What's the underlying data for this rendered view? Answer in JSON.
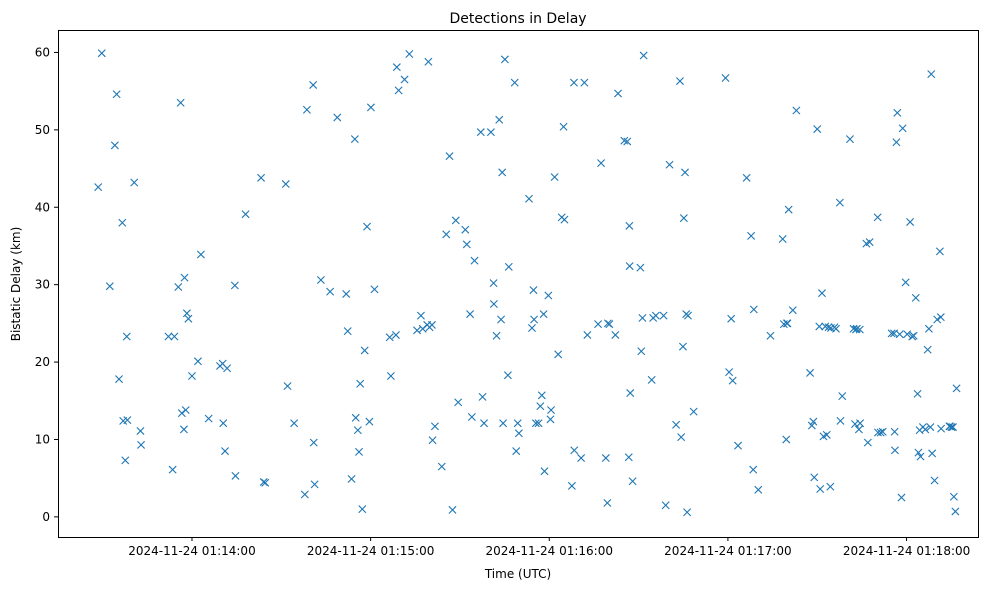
{
  "chart_data": {
    "type": "scatter",
    "title": "Detections in Delay",
    "xlabel": "Time (UTC)",
    "ylabel": "Bistatic Delay (km)",
    "x_unit": "seconds",
    "x_ticks": [
      {
        "value": 60,
        "label": "2024-11-24 01:14:00"
      },
      {
        "value": 120,
        "label": "2024-11-24 01:15:00"
      },
      {
        "value": 180,
        "label": "2024-11-24 01:16:00"
      },
      {
        "value": 240,
        "label": "2024-11-24 01:17:00"
      },
      {
        "value": 300,
        "label": "2024-11-24 01:18:00"
      }
    ],
    "y_ticks": [
      0,
      10,
      20,
      30,
      40,
      50,
      60
    ],
    "xlim": [
      15.0,
      324.0
    ],
    "ylim": [
      -2.6,
      62.9
    ],
    "grid": false,
    "legend": false,
    "marker": "x",
    "color": "#1f77b4",
    "series": [
      {
        "points": [
          [
            28.5,
            42.6
          ],
          [
            29.7,
            59.9
          ],
          [
            32.4,
            29.8
          ],
          [
            34.1,
            48.0
          ],
          [
            34.7,
            54.6
          ],
          [
            35.5,
            17.8
          ],
          [
            36.6,
            38.0
          ],
          [
            36.9,
            12.4
          ],
          [
            37.6,
            7.3
          ],
          [
            38.1,
            23.3
          ],
          [
            38.3,
            12.5
          ],
          [
            40.6,
            43.2
          ],
          [
            42.7,
            11.1
          ],
          [
            42.9,
            9.3
          ],
          [
            52.1,
            23.3
          ],
          [
            53.5,
            6.1
          ],
          [
            54.1,
            23.3
          ],
          [
            55.4,
            29.7
          ],
          [
            56.2,
            53.5
          ],
          [
            56.6,
            13.4
          ],
          [
            57.3,
            11.3
          ],
          [
            57.5,
            30.9
          ],
          [
            57.9,
            13.8
          ],
          [
            58.3,
            26.3
          ],
          [
            58.8,
            25.6
          ],
          [
            60.0,
            18.2
          ],
          [
            62.0,
            20.1
          ],
          [
            63.0,
            33.9
          ],
          [
            65.6,
            12.7
          ],
          [
            69.4,
            19.5
          ],
          [
            70.3,
            19.8
          ],
          [
            70.5,
            12.1
          ],
          [
            71.1,
            8.5
          ],
          [
            71.8,
            19.2
          ],
          [
            74.4,
            29.9
          ],
          [
            74.6,
            5.3
          ],
          [
            78.0,
            39.1
          ],
          [
            83.2,
            43.8
          ],
          [
            84.1,
            4.5
          ],
          [
            84.6,
            4.4
          ],
          [
            91.5,
            43.0
          ],
          [
            92.1,
            16.9
          ],
          [
            94.3,
            12.1
          ],
          [
            97.9,
            2.9
          ],
          [
            98.6,
            52.6
          ],
          [
            100.7,
            55.8
          ],
          [
            100.9,
            9.6
          ],
          [
            101.2,
            4.2
          ],
          [
            103.3,
            30.6
          ],
          [
            106.4,
            29.1
          ],
          [
            108.8,
            51.6
          ],
          [
            111.8,
            28.8
          ],
          [
            112.3,
            24.0
          ],
          [
            113.6,
            4.9
          ],
          [
            114.7,
            48.8
          ],
          [
            115.0,
            12.8
          ],
          [
            115.7,
            11.2
          ],
          [
            116.1,
            8.4
          ],
          [
            116.5,
            17.2
          ],
          [
            117.2,
            1.0
          ],
          [
            118.0,
            21.5
          ],
          [
            118.8,
            37.5
          ],
          [
            119.6,
            12.3
          ],
          [
            120.1,
            52.9
          ],
          [
            121.3,
            29.4
          ],
          [
            126.4,
            23.2
          ],
          [
            126.8,
            18.2
          ],
          [
            128.5,
            23.5
          ],
          [
            128.8,
            58.1
          ],
          [
            129.4,
            55.1
          ],
          [
            131.4,
            56.5
          ],
          [
            133.0,
            59.8
          ],
          [
            135.6,
            24.1
          ],
          [
            136.9,
            26.0
          ],
          [
            137.5,
            24.3
          ],
          [
            139.0,
            24.8
          ],
          [
            139.4,
            58.8
          ],
          [
            139.8,
            24.5
          ],
          [
            140.6,
            24.8
          ],
          [
            140.8,
            9.9
          ],
          [
            141.6,
            11.7
          ],
          [
            143.9,
            6.5
          ],
          [
            145.4,
            36.5
          ],
          [
            146.5,
            46.6
          ],
          [
            147.5,
            0.9
          ],
          [
            148.6,
            38.3
          ],
          [
            149.4,
            14.8
          ],
          [
            151.8,
            37.1
          ],
          [
            152.3,
            35.2
          ],
          [
            153.4,
            26.2
          ],
          [
            154.0,
            12.9
          ],
          [
            154.9,
            33.1
          ],
          [
            157.0,
            49.7
          ],
          [
            157.6,
            15.5
          ],
          [
            158.1,
            12.1
          ],
          [
            160.4,
            49.7
          ],
          [
            161.3,
            30.2
          ],
          [
            161.4,
            27.5
          ],
          [
            162.3,
            23.4
          ],
          [
            163.2,
            51.3
          ],
          [
            163.8,
            25.5
          ],
          [
            164.2,
            44.5
          ],
          [
            164.5,
            12.1
          ],
          [
            165.1,
            59.1
          ],
          [
            166.1,
            18.3
          ],
          [
            166.4,
            32.3
          ],
          [
            168.4,
            56.1
          ],
          [
            168.9,
            8.5
          ],
          [
            169.4,
            12.1
          ],
          [
            169.8,
            10.8
          ],
          [
            173.2,
            41.1
          ],
          [
            174.2,
            24.4
          ],
          [
            174.7,
            29.3
          ],
          [
            174.9,
            25.5
          ],
          [
            175.5,
            12.1
          ],
          [
            176.4,
            12.1
          ],
          [
            177.0,
            14.3
          ],
          [
            177.5,
            15.7
          ],
          [
            178.1,
            26.2
          ],
          [
            178.4,
            5.9
          ],
          [
            179.7,
            28.6
          ],
          [
            180.4,
            12.6
          ],
          [
            180.6,
            13.8
          ],
          [
            181.8,
            43.9
          ],
          [
            183.0,
            21.0
          ],
          [
            184.2,
            38.7
          ],
          [
            184.8,
            50.4
          ],
          [
            185.1,
            38.4
          ],
          [
            187.6,
            4.0
          ],
          [
            188.3,
            56.1
          ],
          [
            188.4,
            8.6
          ],
          [
            190.7,
            7.6
          ],
          [
            191.8,
            56.1
          ],
          [
            192.8,
            23.5
          ],
          [
            196.4,
            24.9
          ],
          [
            197.4,
            45.7
          ],
          [
            199.0,
            7.6
          ],
          [
            199.5,
            1.8
          ],
          [
            199.7,
            25.0
          ],
          [
            200.2,
            24.9
          ],
          [
            202.2,
            23.5
          ],
          [
            203.1,
            54.7
          ],
          [
            205.2,
            48.6
          ],
          [
            206.2,
            48.5
          ],
          [
            206.7,
            7.7
          ],
          [
            206.9,
            37.6
          ],
          [
            207.0,
            32.4
          ],
          [
            207.2,
            16.0
          ],
          [
            208.0,
            4.6
          ],
          [
            210.6,
            32.2
          ],
          [
            210.9,
            21.4
          ],
          [
            211.3,
            25.7
          ],
          [
            211.7,
            59.6
          ],
          [
            214.4,
            17.7
          ],
          [
            214.9,
            25.7
          ],
          [
            215.8,
            26.0
          ],
          [
            218.4,
            26.0
          ],
          [
            219.1,
            1.5
          ],
          [
            220.4,
            45.5
          ],
          [
            222.6,
            11.9
          ],
          [
            223.9,
            56.3
          ],
          [
            224.3,
            10.3
          ],
          [
            224.9,
            22.0
          ],
          [
            225.2,
            38.6
          ],
          [
            225.6,
            44.5
          ],
          [
            226.0,
            26.2
          ],
          [
            226.3,
            0.6
          ],
          [
            226.6,
            26.0
          ],
          [
            228.5,
            13.6
          ],
          [
            239.2,
            56.7
          ],
          [
            240.4,
            18.7
          ],
          [
            241.1,
            25.6
          ],
          [
            241.6,
            17.6
          ],
          [
            243.4,
            9.2
          ],
          [
            246.3,
            43.8
          ],
          [
            247.8,
            36.3
          ],
          [
            248.5,
            6.1
          ],
          [
            248.7,
            26.8
          ],
          [
            250.2,
            3.5
          ],
          [
            254.3,
            23.4
          ],
          [
            258.4,
            35.9
          ],
          [
            258.8,
            24.9
          ],
          [
            259.6,
            10.0
          ],
          [
            259.8,
            25.0
          ],
          [
            260.0,
            25.0
          ],
          [
            260.4,
            39.7
          ],
          [
            261.8,
            26.7
          ],
          [
            263.0,
            52.5
          ],
          [
            267.6,
            18.6
          ],
          [
            268.2,
            11.8
          ],
          [
            268.7,
            12.3
          ],
          [
            269.0,
            5.1
          ],
          [
            270.0,
            50.1
          ],
          [
            270.7,
            24.6
          ],
          [
            271.0,
            3.6
          ],
          [
            271.6,
            28.9
          ],
          [
            272.1,
            10.4
          ],
          [
            272.7,
            24.6
          ],
          [
            273.2,
            10.6
          ],
          [
            273.8,
            24.5
          ],
          [
            274.4,
            3.9
          ],
          [
            274.6,
            24.4
          ],
          [
            275.8,
            24.5
          ],
          [
            276.3,
            24.3
          ],
          [
            277.6,
            40.6
          ],
          [
            277.8,
            12.4
          ],
          [
            278.4,
            15.6
          ],
          [
            281.0,
            48.8
          ],
          [
            282.2,
            24.3
          ],
          [
            282.7,
            12.0
          ],
          [
            283.0,
            24.2
          ],
          [
            283.3,
            24.3
          ],
          [
            284.0,
            11.3
          ],
          [
            284.3,
            24.2
          ],
          [
            284.4,
            12.1
          ],
          [
            286.5,
            35.3
          ],
          [
            287.0,
            9.6
          ],
          [
            287.6,
            35.5
          ],
          [
            290.3,
            38.7
          ],
          [
            290.4,
            10.9
          ],
          [
            291.3,
            10.9
          ],
          [
            292.0,
            11.0
          ],
          [
            295.0,
            23.7
          ],
          [
            295.8,
            23.7
          ],
          [
            296.0,
            11.0
          ],
          [
            296.1,
            8.6
          ],
          [
            296.6,
            48.4
          ],
          [
            296.9,
            52.2
          ],
          [
            297.7,
            23.6
          ],
          [
            298.3,
            2.5
          ],
          [
            298.7,
            50.2
          ],
          [
            299.7,
            30.3
          ],
          [
            300.2,
            23.6
          ],
          [
            301.2,
            38.1
          ],
          [
            301.9,
            23.3
          ],
          [
            302.4,
            23.4
          ],
          [
            303.1,
            28.3
          ],
          [
            303.7,
            15.9
          ],
          [
            304.0,
            8.3
          ],
          [
            304.4,
            11.2
          ],
          [
            304.7,
            7.8
          ],
          [
            305.5,
            11.6
          ],
          [
            306.3,
            11.3
          ],
          [
            307.1,
            21.6
          ],
          [
            307.5,
            24.3
          ],
          [
            308.0,
            11.6
          ],
          [
            308.3,
            57.2
          ],
          [
            308.6,
            8.2
          ],
          [
            309.4,
            4.7
          ],
          [
            310.3,
            25.5
          ],
          [
            311.2,
            34.3
          ],
          [
            311.5,
            25.8
          ],
          [
            311.6,
            11.4
          ],
          [
            314.4,
            11.7
          ],
          [
            314.6,
            11.7
          ],
          [
            315.1,
            11.6
          ],
          [
            315.6,
            11.6
          ],
          [
            315.9,
            2.6
          ],
          [
            316.4,
            0.7
          ],
          [
            316.8,
            16.6
          ]
        ]
      }
    ]
  }
}
